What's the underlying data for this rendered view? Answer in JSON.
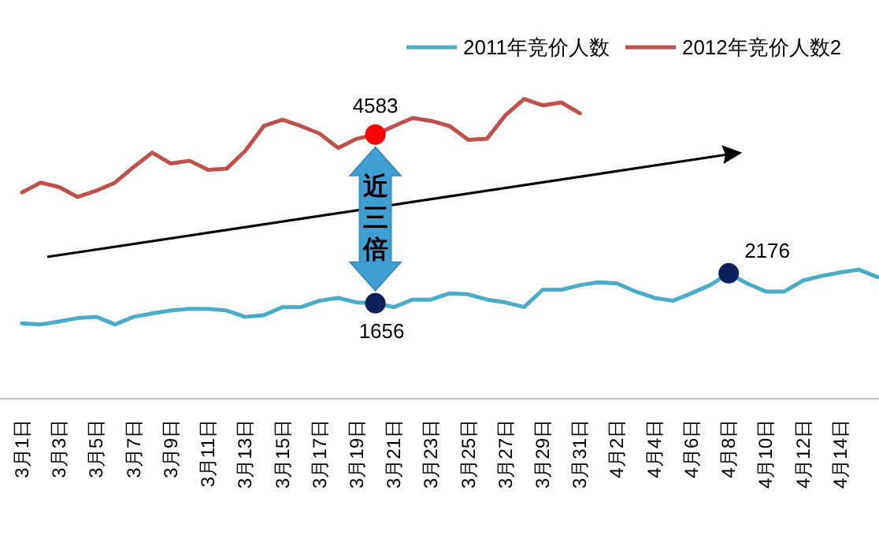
{
  "chart_data": {
    "type": "line",
    "legend": "top",
    "tick_labels": "x",
    "categories": [
      "3月1日",
      null,
      "3月3日",
      null,
      "3月5日",
      null,
      "3月7日",
      null,
      "3月9日",
      null,
      "3月11日",
      null,
      "3月13日",
      null,
      "3月15日",
      null,
      "3月17日",
      null,
      "3月19日",
      null,
      "3月21日",
      null,
      "3月23日",
      null,
      "3月25日",
      null,
      "3月27日",
      null,
      "3月29日",
      null,
      "3月31日",
      null,
      "4月2日",
      null,
      "4月4日",
      null,
      "4月6日",
      null,
      "4月8日",
      null,
      "4月10日",
      null,
      "4月12日",
      null,
      "4月14日",
      null,
      null
    ],
    "series": [
      {
        "name": "2011年竞价人数",
        "color": "#4bacc6",
        "values": [
          1310,
          1290,
          1340,
          1400,
          1420,
          1290,
          1420,
          1480,
          1530,
          1560,
          1560,
          1530,
          1420,
          1450,
          1590,
          1590,
          1700,
          1750,
          1670,
          1656,
          1590,
          1720,
          1720,
          1830,
          1810,
          1720,
          1670,
          1590,
          1890,
          1890,
          1970,
          2020,
          2000,
          1860,
          1750,
          1700,
          1830,
          1970,
          2176,
          2000,
          1860,
          1860,
          2050,
          2130,
          2190,
          2240,
          2110
        ],
        "value_labels": [
          null,
          null,
          null,
          null,
          null,
          null,
          null,
          null,
          null,
          null,
          null,
          null,
          null,
          null,
          null,
          null,
          null,
          null,
          null,
          "1656",
          null,
          null,
          null,
          null,
          null,
          null,
          null,
          null,
          null,
          null,
          null,
          null,
          null,
          null,
          null,
          null,
          null,
          null,
          "2176",
          null,
          null,
          null,
          null,
          null,
          null,
          null,
          null
        ]
      },
      {
        "name": "2012年竞价人数2",
        "color": "#c0504d",
        "values": [
          3580,
          3750,
          3670,
          3500,
          3610,
          3750,
          4020,
          4270,
          4080,
          4130,
          3970,
          3990,
          4300,
          4730,
          4840,
          4730,
          4600,
          4350,
          4510,
          4583,
          4730,
          4870,
          4820,
          4730,
          4490,
          4510,
          4920,
          5200,
          5090,
          5140,
          4950,
          null,
          null,
          null,
          null,
          null,
          null,
          null,
          null,
          null,
          null,
          null,
          null,
          null,
          null,
          null,
          null
        ],
        "value_labels": [
          null,
          null,
          null,
          null,
          null,
          null,
          null,
          null,
          null,
          null,
          null,
          null,
          null,
          null,
          null,
          null,
          null,
          null,
          null,
          "4583",
          null,
          null,
          null,
          null,
          null,
          null,
          null,
          null,
          null,
          null,
          null,
          null,
          null,
          null,
          null,
          null,
          null,
          null,
          null,
          null,
          null,
          null,
          null,
          null,
          null,
          null,
          null
        ]
      }
    ],
    "annotations": [
      "近三倍"
    ]
  }
}
